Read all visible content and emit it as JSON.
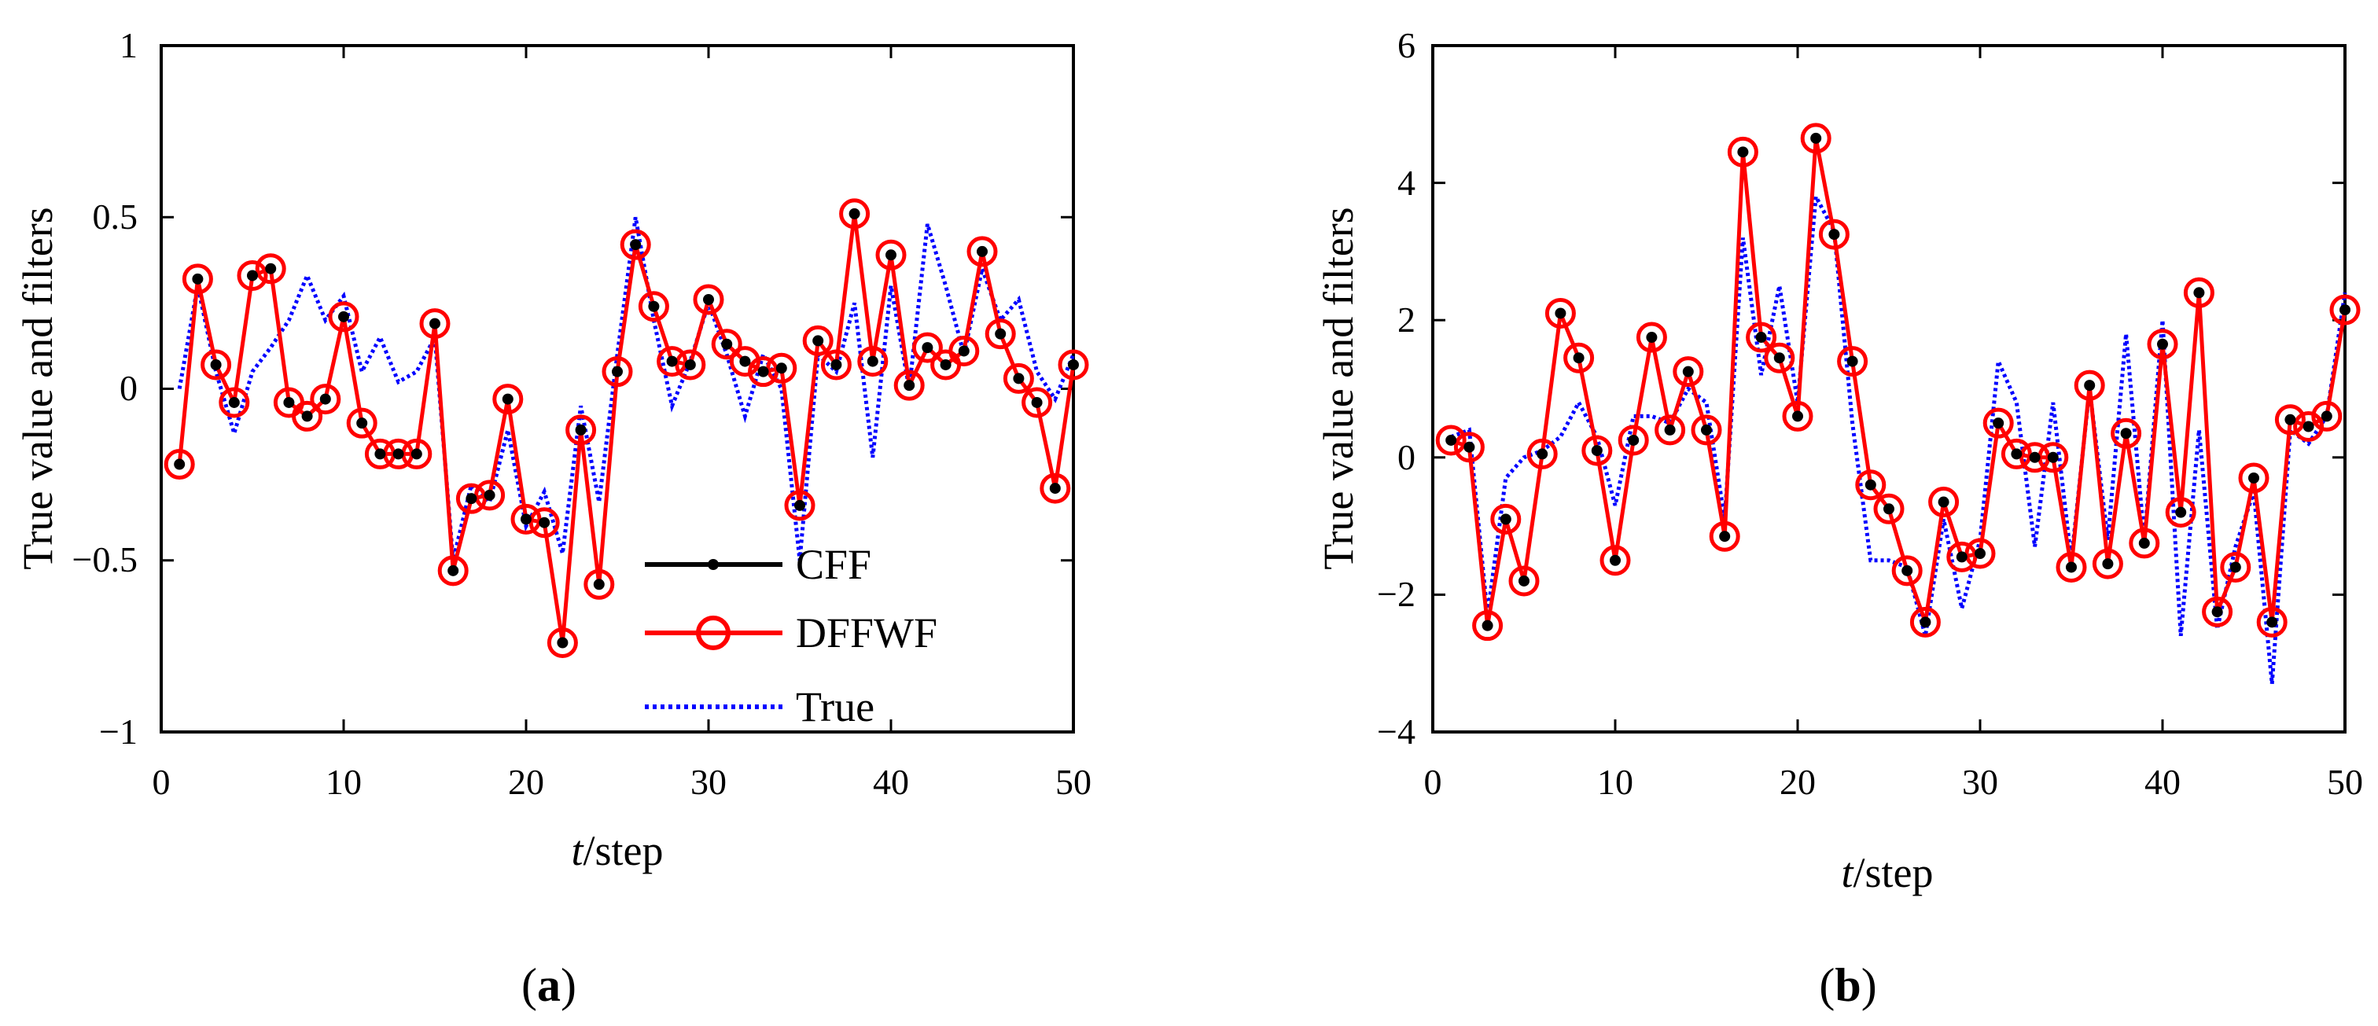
{
  "figure": {
    "panel_a_label": {
      "open": "(",
      "letter": "a",
      "close": ")"
    },
    "panel_b_label": {
      "open": "(",
      "letter": "b",
      "close": ")"
    }
  },
  "legend": {
    "items": [
      {
        "label": "CFF",
        "color": "#000000",
        "style": "solid-dot"
      },
      {
        "label": "DFFWF",
        "color": "#ff0000",
        "style": "solid-circle"
      },
      {
        "label": "True",
        "color": "#0000ff",
        "style": "dotted"
      }
    ]
  },
  "chart_data": [
    {
      "type": "line",
      "panel": "a",
      "title": "",
      "xlabel_var": "t",
      "xlabel_unit": "/step",
      "ylabel": "True value and filters",
      "xlim": [
        0,
        50
      ],
      "ylim": [
        -1,
        1
      ],
      "xticks": [
        0,
        10,
        20,
        30,
        40,
        50
      ],
      "xtick_labels": [
        "0",
        "10",
        "20",
        "30",
        "40",
        "50"
      ],
      "yticks": [
        -1,
        -0.5,
        0,
        0.5,
        1
      ],
      "ytick_labels": [
        "−1",
        "−0.5",
        "0",
        "0.5",
        "1"
      ],
      "legend_position": "bottom-center",
      "x": [
        1,
        2,
        3,
        4,
        5,
        6,
        7,
        8,
        9,
        10,
        11,
        12,
        13,
        14,
        15,
        16,
        17,
        18,
        19,
        20,
        21,
        22,
        23,
        24,
        25,
        26,
        27,
        28,
        29,
        30,
        31,
        32,
        33,
        34,
        35,
        36,
        37,
        38,
        39,
        40,
        41,
        42,
        43,
        44,
        45,
        46,
        47,
        48,
        49,
        50
      ],
      "series": [
        {
          "name": "True",
          "color": "#0000ff",
          "values": [
            0.0,
            0.3,
            0.05,
            -0.13,
            0.05,
            0.12,
            0.2,
            0.33,
            0.2,
            0.27,
            0.05,
            0.15,
            0.02,
            0.05,
            0.15,
            -0.5,
            -0.28,
            -0.33,
            -0.12,
            -0.4,
            -0.3,
            -0.48,
            -0.05,
            -0.33,
            0.1,
            0.5,
            0.2,
            -0.05,
            0.08,
            0.25,
            0.1,
            -0.08,
            0.1,
            0.0,
            -0.5,
            0.1,
            0.05,
            0.25,
            -0.2,
            0.3,
            0.0,
            0.48,
            0.3,
            0.1,
            0.35,
            0.2,
            0.26,
            0.05,
            -0.03,
            0.1
          ]
        },
        {
          "name": "CFF",
          "color": "#000000",
          "values": [
            -0.22,
            0.32,
            0.07,
            -0.04,
            0.33,
            0.35,
            -0.04,
            -0.08,
            -0.03,
            0.21,
            -0.1,
            -0.19,
            -0.19,
            -0.19,
            0.19,
            -0.53,
            -0.32,
            -0.31,
            -0.03,
            -0.38,
            -0.39,
            -0.74,
            -0.12,
            -0.57,
            0.05,
            0.42,
            0.24,
            0.08,
            0.07,
            0.26,
            0.13,
            0.08,
            0.05,
            0.06,
            -0.34,
            0.14,
            0.07,
            0.51,
            0.08,
            0.39,
            0.01,
            0.12,
            0.07,
            0.11,
            0.4,
            0.16,
            0.03,
            -0.04,
            -0.29,
            0.07
          ]
        },
        {
          "name": "DFFWF",
          "color": "#ff0000",
          "values": [
            -0.22,
            0.32,
            0.07,
            -0.04,
            0.33,
            0.35,
            -0.04,
            -0.08,
            -0.03,
            0.21,
            -0.1,
            -0.19,
            -0.19,
            -0.19,
            0.19,
            -0.53,
            -0.32,
            -0.31,
            -0.03,
            -0.38,
            -0.39,
            -0.74,
            -0.12,
            -0.57,
            0.05,
            0.42,
            0.24,
            0.08,
            0.07,
            0.26,
            0.13,
            0.08,
            0.05,
            0.06,
            -0.34,
            0.14,
            0.07,
            0.51,
            0.08,
            0.39,
            0.01,
            0.12,
            0.07,
            0.11,
            0.4,
            0.16,
            0.03,
            -0.04,
            -0.29,
            0.07
          ]
        }
      ]
    },
    {
      "type": "line",
      "panel": "b",
      "title": "",
      "xlabel_var": "t",
      "xlabel_unit": "/step",
      "ylabel": "True value and filters",
      "xlim": [
        0,
        50
      ],
      "ylim": [
        -4,
        6
      ],
      "xticks": [
        0,
        10,
        20,
        30,
        40,
        50
      ],
      "xtick_labels": [
        "0",
        "10",
        "20",
        "30",
        "40",
        "50"
      ],
      "yticks": [
        -4,
        -2,
        0,
        2,
        4,
        6
      ],
      "ytick_labels": [
        "−4",
        "−2",
        "0",
        "2",
        "4",
        "6"
      ],
      "x": [
        1,
        2,
        3,
        4,
        5,
        6,
        7,
        8,
        9,
        10,
        11,
        12,
        13,
        14,
        15,
        16,
        17,
        18,
        19,
        20,
        21,
        22,
        23,
        24,
        25,
        26,
        27,
        28,
        29,
        30,
        31,
        32,
        33,
        34,
        35,
        36,
        37,
        38,
        39,
        40,
        41,
        42,
        43,
        44,
        45,
        46,
        47,
        48,
        49,
        50
      ],
      "series": [
        {
          "name": "True",
          "color": "#0000ff",
          "values": [
            0.3,
            0.4,
            -2.3,
            -0.3,
            0.0,
            0.1,
            0.3,
            0.8,
            0.3,
            -0.7,
            0.6,
            0.6,
            0.5,
            1.0,
            0.8,
            -0.9,
            3.2,
            1.2,
            2.5,
            0.8,
            3.8,
            3.3,
            0.5,
            -1.5,
            -1.5,
            -1.6,
            -2.6,
            -0.9,
            -2.2,
            -1.2,
            1.4,
            0.8,
            -1.3,
            0.8,
            -1.5,
            1.0,
            -1.2,
            1.8,
            -1.2,
            2.0,
            -2.6,
            0.4,
            -2.5,
            -1.3,
            -0.5,
            -3.3,
            0.4,
            0.2,
            0.6,
            2.4
          ]
        },
        {
          "name": "CFF",
          "color": "#000000",
          "values": [
            0.25,
            0.15,
            -2.45,
            -0.9,
            -1.8,
            0.05,
            2.1,
            1.45,
            0.1,
            -1.5,
            0.25,
            1.75,
            0.4,
            1.25,
            0.4,
            -1.15,
            4.45,
            1.75,
            1.45,
            0.6,
            4.65,
            3.25,
            1.4,
            -0.4,
            -0.75,
            -1.65,
            -2.4,
            -0.65,
            -1.45,
            -1.4,
            0.5,
            0.05,
            0.0,
            0.0,
            -1.6,
            1.05,
            -1.55,
            0.35,
            -1.25,
            1.65,
            -0.8,
            2.4,
            -2.25,
            -1.6,
            -0.3,
            -2.4,
            0.55,
            0.45,
            0.6,
            2.15
          ]
        },
        {
          "name": "DFFWF",
          "color": "#ff0000",
          "values": [
            0.25,
            0.15,
            -2.45,
            -0.9,
            -1.8,
            0.05,
            2.1,
            1.45,
            0.1,
            -1.5,
            0.25,
            1.75,
            0.4,
            1.25,
            0.4,
            -1.15,
            4.45,
            1.75,
            1.45,
            0.6,
            4.65,
            3.25,
            1.4,
            -0.4,
            -0.75,
            -1.65,
            -2.4,
            -0.65,
            -1.45,
            -1.4,
            0.5,
            0.05,
            0.0,
            0.0,
            -1.6,
            1.05,
            -1.55,
            0.35,
            -1.25,
            1.65,
            -0.8,
            2.4,
            -2.25,
            -1.6,
            -0.3,
            -2.4,
            0.55,
            0.45,
            0.6,
            2.15
          ]
        }
      ]
    }
  ]
}
